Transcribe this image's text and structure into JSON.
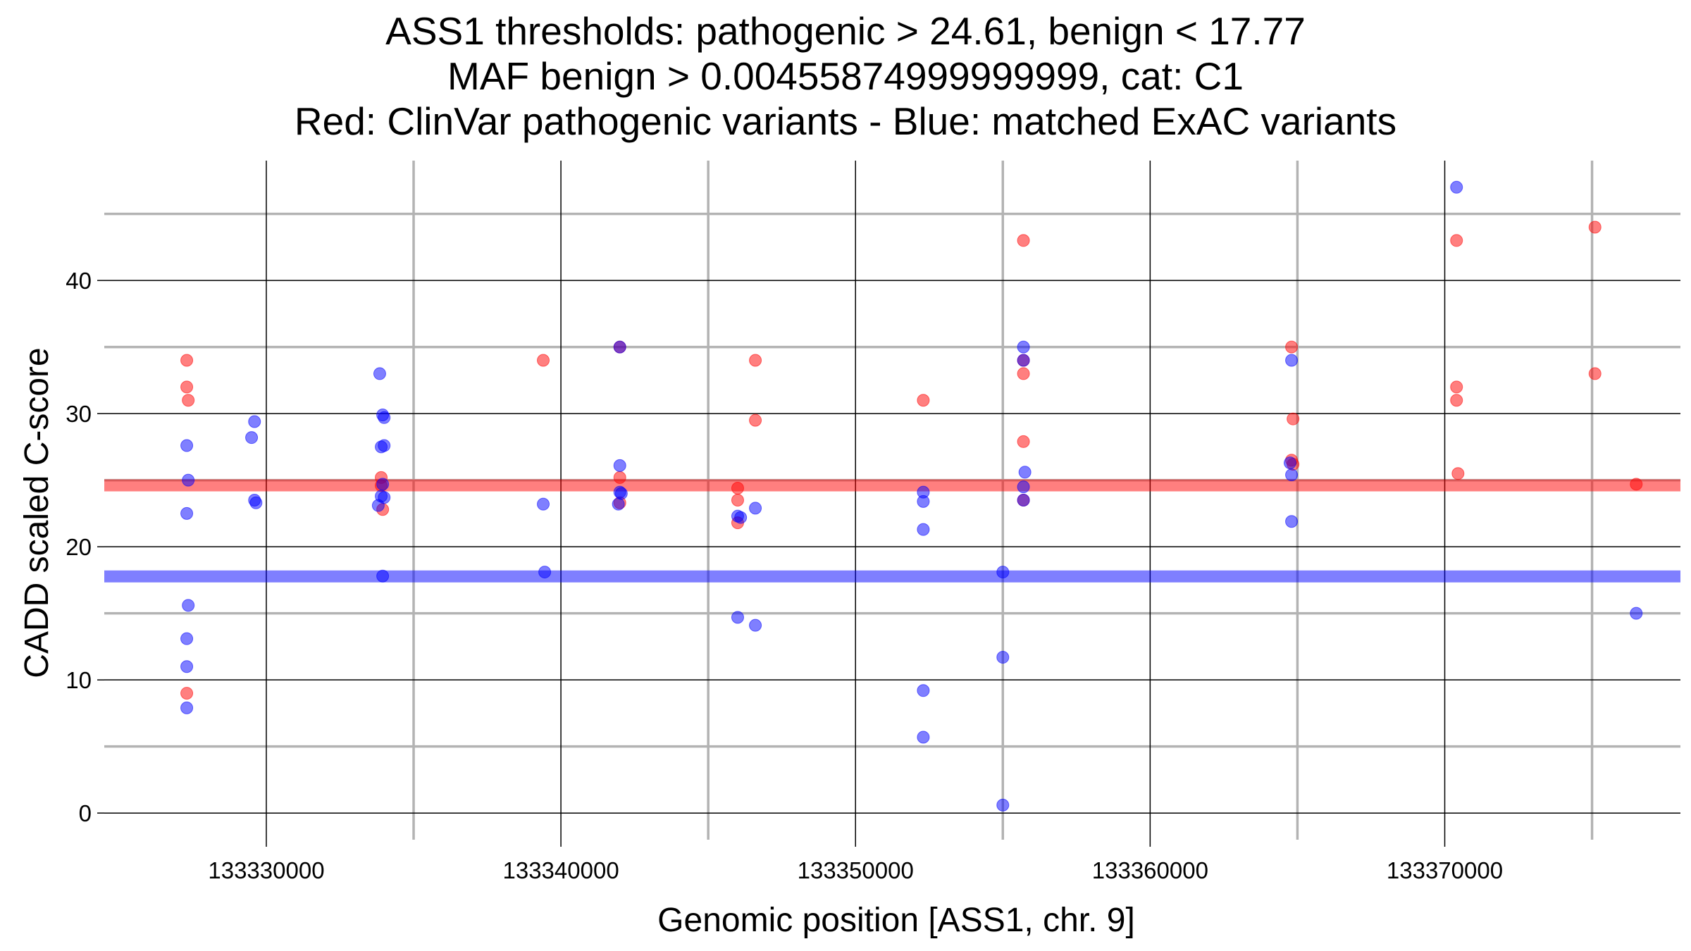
{
  "chart_data": {
    "type": "scatter",
    "title_lines": [
      "ASS1 thresholds: pathogenic > 24.61, benign < 17.77",
      "MAF benign > 0.00455874999999999, cat: C1",
      "Red: ClinVar pathogenic variants - Blue: matched ExAC variants"
    ],
    "xlabel": "Genomic position [ASS1, chr. 9]",
    "ylabel": "CADD scaled C-score",
    "xlim": [
      133324500,
      133378000
    ],
    "ylim": [
      -2,
      49
    ],
    "x_ticks": [
      133330000,
      133340000,
      133350000,
      133360000,
      133370000
    ],
    "x_tick_labels": [
      "133330000",
      "133340000",
      "133350000",
      "133360000",
      "133370000"
    ],
    "x_minor_gridlines": [
      133335000,
      133345000,
      133355000,
      133365000,
      133375000
    ],
    "y_ticks": [
      0,
      10,
      20,
      30,
      40
    ],
    "y_tick_labels": [
      "0",
      "10",
      "20",
      "30",
      "40"
    ],
    "y_minor_gridlines": [
      5,
      15,
      25,
      35,
      45
    ],
    "grid": true,
    "thresholds": [
      {
        "value": 24.61,
        "color": "#ff0000"
      },
      {
        "value": 17.77,
        "color": "#0000ff"
      }
    ],
    "series": [
      {
        "color": "#ff0000",
        "points": [
          [
            133327300,
            34
          ],
          [
            133327300,
            32
          ],
          [
            133327350,
            31
          ],
          [
            133327300,
            9
          ],
          [
            133333900,
            25.2
          ],
          [
            133333950,
            22.8
          ],
          [
            133333900,
            24.6
          ],
          [
            133339400,
            34
          ],
          [
            133342000,
            35
          ],
          [
            133342000,
            25.2
          ],
          [
            133342000,
            23.3
          ],
          [
            133346000,
            24.4
          ],
          [
            133346000,
            23.5
          ],
          [
            133346000,
            21.8
          ],
          [
            133346600,
            34
          ],
          [
            133346600,
            29.5
          ],
          [
            133352300,
            31
          ],
          [
            133355700,
            43
          ],
          [
            133355700,
            34
          ],
          [
            133355700,
            33
          ],
          [
            133355700,
            27.9
          ],
          [
            133355700,
            23.5
          ],
          [
            133364800,
            35
          ],
          [
            133364850,
            29.6
          ],
          [
            133364800,
            26.5
          ],
          [
            133364850,
            26.2
          ],
          [
            133370400,
            43
          ],
          [
            133370400,
            32
          ],
          [
            133370400,
            31
          ],
          [
            133370450,
            25.5
          ],
          [
            133375100,
            44
          ],
          [
            133375100,
            33
          ],
          [
            133376500,
            24.7
          ]
        ]
      },
      {
        "color": "#0000ff",
        "points": [
          [
            133327300,
            27.6
          ],
          [
            133327350,
            25
          ],
          [
            133327300,
            22.5
          ],
          [
            133327350,
            15.6
          ],
          [
            133327300,
            13.1
          ],
          [
            133327300,
            11
          ],
          [
            133327300,
            7.9
          ],
          [
            133329600,
            29.4
          ],
          [
            133329500,
            28.2
          ],
          [
            133329600,
            23.5
          ],
          [
            133329650,
            23.3
          ],
          [
            133333850,
            33
          ],
          [
            133333950,
            29.9
          ],
          [
            133334000,
            29.7
          ],
          [
            133333900,
            27.5
          ],
          [
            133334000,
            27.6
          ],
          [
            133333950,
            24.7
          ],
          [
            133333900,
            23.8
          ],
          [
            133334000,
            23.7
          ],
          [
            133333800,
            23.1
          ],
          [
            133333950,
            17.8
          ],
          [
            133339400,
            23.2
          ],
          [
            133339450,
            18.1
          ],
          [
            133342000,
            35
          ],
          [
            133342000,
            26.1
          ],
          [
            133342000,
            24.1
          ],
          [
            133342050,
            24
          ],
          [
            133341950,
            23.2
          ],
          [
            133346000,
            22.3
          ],
          [
            133346100,
            22.2
          ],
          [
            133346600,
            22.9
          ],
          [
            133346000,
            14.7
          ],
          [
            133346600,
            14.1
          ],
          [
            133352300,
            24.1
          ],
          [
            133352300,
            23.4
          ],
          [
            133352300,
            21.3
          ],
          [
            133352300,
            9.2
          ],
          [
            133352300,
            5.7
          ],
          [
            133355000,
            18.1
          ],
          [
            133355000,
            11.7
          ],
          [
            133355000,
            0.6
          ],
          [
            133355700,
            35
          ],
          [
            133355700,
            34
          ],
          [
            133355750,
            25.6
          ],
          [
            133355700,
            24.5
          ],
          [
            133355700,
            23.5
          ],
          [
            133364800,
            34
          ],
          [
            133364750,
            26.3
          ],
          [
            133364800,
            25.4
          ],
          [
            133364800,
            21.9
          ],
          [
            133370400,
            47
          ],
          [
            133376500,
            15
          ]
        ]
      }
    ]
  }
}
